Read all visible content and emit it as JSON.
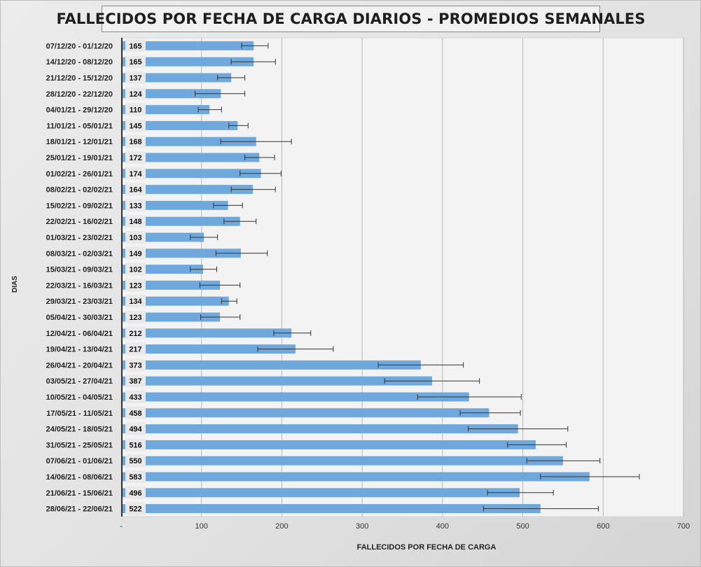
{
  "chart_data": {
    "type": "bar",
    "orientation": "horizontal",
    "title": "FALLECIDOS POR FECHA DE CARGA DIARIOS - PROMEDIOS SEMANALES",
    "xlabel": "FALLECIDOS POR FECHA DE CARGA",
    "ylabel": "DIAS",
    "xlim": [
      0,
      700
    ],
    "x_ticks": [
      "-",
      "100",
      "200",
      "300",
      "400",
      "500",
      "600",
      "700"
    ],
    "grid": "vertical",
    "bar_color": "#6fa8dc",
    "categories": [
      "07/12/20 - 01/12/20",
      "14/12/20 - 08/12/20",
      "21/12/20 - 15/12/20",
      "28/12/20 - 22/12/20",
      "04/01/21 - 29/12/20",
      "11/01/21 - 05/01/21",
      "18/01/21 - 12/01/21",
      "25/01/21 - 19/01/21",
      "01/02/21 - 26/01/21",
      "08/02/21 - 02/02/21",
      "15/02/21 - 09/02/21",
      "22/02/21 - 16/02/21",
      "01/03/21 - 23/02/21",
      "08/03/21 - 02/03/21",
      "15/03/21 - 09/03/21",
      "22/03/21 - 16/03/21",
      "29/03/21 - 23/03/21",
      "05/04/21 - 30/03/21",
      "12/04/21 - 06/04/21",
      "19/04/21 - 13/04/21",
      "26/04/21 - 20/04/21",
      "03/05/21 - 27/04/21",
      "10/05/21 - 04/05/21",
      "17/05/21 - 11/05/21",
      "24/05/21 - 18/05/21",
      "31/05/21 - 25/05/21",
      "07/06/21 - 01/06/21",
      "14/06/21 - 08/06/21",
      "21/06/21 - 15/06/21",
      "28/06/21 - 22/06/21"
    ],
    "values": [
      165,
      165,
      137,
      124,
      110,
      145,
      168,
      172,
      174,
      164,
      133,
      148,
      103,
      149,
      102,
      123,
      134,
      123,
      212,
      217,
      373,
      387,
      433,
      458,
      494,
      516,
      550,
      583,
      496,
      522
    ],
    "error_low": [
      150,
      137,
      120,
      92,
      96,
      134,
      124,
      154,
      148,
      137,
      115,
      128,
      86,
      118,
      86,
      98,
      125,
      99,
      190,
      170,
      320,
      328,
      369,
      422,
      432,
      481,
      505,
      522,
      456,
      451
    ],
    "error_high": [
      183,
      192,
      154,
      154,
      125,
      158,
      212,
      191,
      199,
      192,
      151,
      168,
      120,
      182,
      119,
      148,
      144,
      148,
      236,
      264,
      426,
      446,
      498,
      497,
      556,
      554,
      596,
      645,
      538,
      594
    ]
  }
}
